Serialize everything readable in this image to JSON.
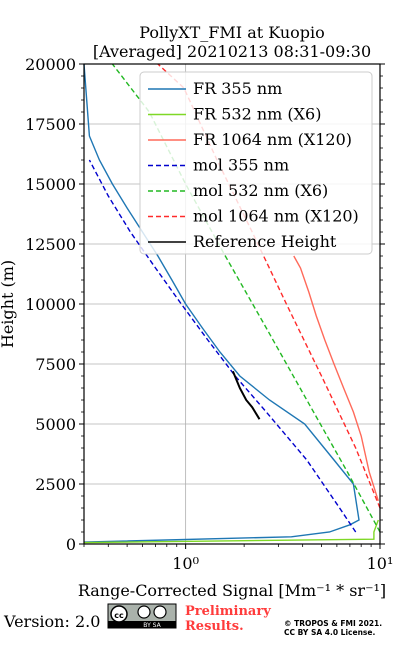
{
  "chart_data": {
    "type": "line",
    "title_lines": [
      "PollyXT_FMI at Kuopio",
      "[Averaged] 20210213 08:31-09:30"
    ],
    "xlabel": "Range-Corrected Signal [Mm⁻¹ * sr⁻¹]",
    "ylabel": "Height (m)",
    "xscale": "log",
    "xlim": [
      0.3,
      10
    ],
    "ylim": [
      0,
      20000
    ],
    "grid": true,
    "legend_position": "top-right",
    "y_ticks": [
      0,
      2500,
      5000,
      7500,
      10000,
      12500,
      15000,
      17500,
      20000
    ],
    "y_tick_labels": [
      "0",
      "2500",
      "5000",
      "7500",
      "10000",
      "12500",
      "15000",
      "17500",
      "20000"
    ],
    "x_ticks": [
      1,
      10
    ],
    "x_tick_labels": [
      "10⁰",
      "10¹"
    ],
    "series": [
      {
        "name": "FR 355 nm",
        "color": "#1f77b4",
        "style": "solid",
        "x": [
          0.3,
          3.5,
          5.5,
          7.0,
          7.8,
          7.3,
          5.8,
          4.1,
          2.7,
          1.9,
          1.5,
          1.22,
          1.0,
          0.85,
          0.72,
          0.6,
          0.5,
          0.42,
          0.36,
          0.32,
          0.3
        ],
        "y": [
          80,
          300,
          500,
          800,
          1000,
          2500,
          3500,
          5000,
          6000,
          7000,
          8000,
          9000,
          10000,
          11000,
          12000,
          13000,
          14000,
          15000,
          16000,
          17000,
          20000
        ]
      },
      {
        "name": "FR 532 nm (X6)",
        "color": "#7fd826",
        "style": "solid",
        "x": [
          0.3,
          9.3,
          9.3,
          9.8
        ],
        "y": [
          60,
          200,
          500,
          1000
        ]
      },
      {
        "name": "FR 1064 nm (X120)",
        "color": "#ff6a5a",
        "style": "solid",
        "x": [
          9.8,
          8.8,
          8.0,
          7.3,
          6.5,
          5.8,
          5.2,
          4.7,
          4.3,
          3.9,
          3.6
        ],
        "y": [
          1800,
          3000,
          4500,
          5500,
          6500,
          7500,
          8500,
          9500,
          10500,
          11500,
          12000
        ]
      },
      {
        "name": "mol 355 nm",
        "color": "#0000cd",
        "style": "dashed",
        "x": [
          7.5,
          6.2,
          4.2,
          2.6,
          1.8,
          1.3,
          0.95,
          0.7,
          0.52,
          0.4,
          0.32
        ],
        "y": [
          500,
          1500,
          3500,
          5500,
          7000,
          8500,
          10000,
          11500,
          13000,
          14500,
          16000
        ]
      },
      {
        "name": "mol 532 nm (X6)",
        "color": "#22b822",
        "style": "dashed",
        "x": [
          10.0,
          6.8,
          4.2,
          2.6,
          1.6,
          1.0,
          0.65,
          0.42
        ],
        "y": [
          500,
          3000,
          6000,
          9000,
          12000,
          15000,
          18000,
          20000
        ]
      },
      {
        "name": "mol 1064 nm (X120)",
        "color": "#ff2a2a",
        "style": "dashed",
        "x": [
          10.0,
          7.5,
          5.0,
          3.3,
          2.2,
          1.45,
          0.98,
          0.72
        ],
        "y": [
          1500,
          4000,
          7000,
          10000,
          13000,
          16000,
          19000,
          20000
        ]
      },
      {
        "name": "Reference Height",
        "color": "#000000",
        "style": "solid",
        "x": [
          1.75,
          1.9,
          2.05,
          2.2,
          2.4
        ],
        "y": [
          7200,
          6500,
          6000,
          5700,
          5200
        ]
      }
    ]
  },
  "footer": {
    "version": "Version: 2.0",
    "preliminary": "Preliminary\nResults.",
    "copyright": "© TROPOS & FMI 2021.\nCC BY SA 4.0 License.",
    "license_badge": "BY SA"
  },
  "colors": {
    "preliminary": "#ff3b3b"
  }
}
